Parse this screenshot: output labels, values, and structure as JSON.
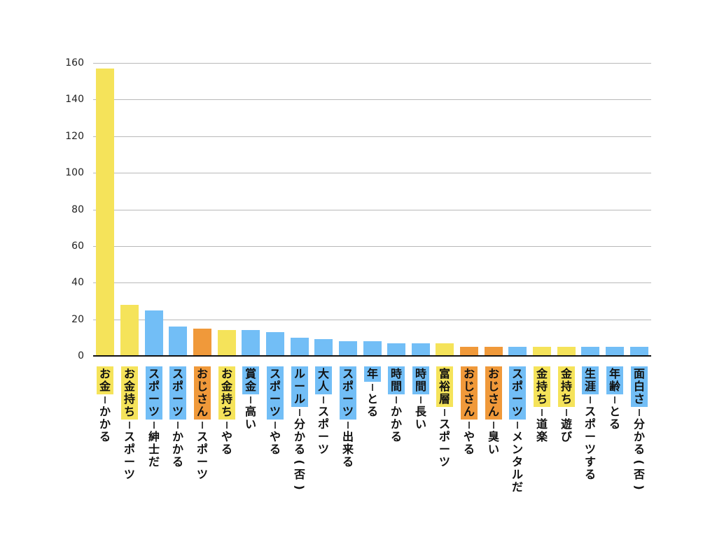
{
  "chart_data": {
    "type": "bar",
    "title": "",
    "xlabel": "",
    "ylabel": "",
    "ylim": [
      0,
      160
    ],
    "yticks": [
      0,
      20,
      40,
      60,
      80,
      100,
      120,
      140,
      160
    ],
    "grid": true,
    "legend": null,
    "colors": {
      "yellow": "#F5E35A",
      "blue": "#72BEF6",
      "orange": "#F0993A"
    },
    "categories": [
      "お金－かかる",
      "お金持ち－スポーツ",
      "スポーツ－紳士だ",
      "スポーツ－かかる",
      "おじさん－スポーツ",
      "お金持ち－やる",
      "賞金－高い",
      "スポーツ－やる",
      "ルール－分かる(否)",
      "大人－スポーツ",
      "スポーツ－出来る",
      "年－とる",
      "時間－かかる",
      "時間－長い",
      "富裕層－スポーツ",
      "おじさん－やる",
      "おじさん－臭い",
      "スポーツ－メンタルだ",
      "金持ち－道楽",
      "金持ち－遊び",
      "生涯－スポーツする",
      "年齢－とる",
      "面白さ－分かる(否)"
    ],
    "values": [
      157,
      28,
      25,
      16,
      15,
      14,
      14,
      13,
      10,
      9,
      8,
      8,
      7,
      7,
      7,
      5,
      5,
      5,
      5,
      5,
      5,
      5,
      5
    ],
    "bars": [
      {
        "subject": "お金",
        "predicate": "かかる",
        "value": 157,
        "color": "yellow"
      },
      {
        "subject": "お金持ち",
        "predicate": "スポーツ",
        "value": 28,
        "color": "yellow"
      },
      {
        "subject": "スポーツ",
        "predicate": "紳士だ",
        "value": 25,
        "color": "blue"
      },
      {
        "subject": "スポーツ",
        "predicate": "かかる",
        "value": 16,
        "color": "blue"
      },
      {
        "subject": "おじさん",
        "predicate": "スポーツ",
        "value": 15,
        "color": "orange"
      },
      {
        "subject": "お金持ち",
        "predicate": "やる",
        "value": 14,
        "color": "yellow"
      },
      {
        "subject": "賞金",
        "predicate": "高い",
        "value": 14,
        "color": "blue"
      },
      {
        "subject": "スポーツ",
        "predicate": "やる",
        "value": 13,
        "color": "blue"
      },
      {
        "subject": "ルール",
        "predicate": "分かる(否)",
        "value": 10,
        "color": "blue"
      },
      {
        "subject": "大人",
        "predicate": "スポーツ",
        "value": 9,
        "color": "blue"
      },
      {
        "subject": "スポーツ",
        "predicate": "出来る",
        "value": 8,
        "color": "blue"
      },
      {
        "subject": "年",
        "predicate": "とる",
        "value": 8,
        "color": "blue"
      },
      {
        "subject": "時間",
        "predicate": "かかる",
        "value": 7,
        "color": "blue"
      },
      {
        "subject": "時間",
        "predicate": "長い",
        "value": 7,
        "color": "blue"
      },
      {
        "subject": "富裕層",
        "predicate": "スポーツ",
        "value": 7,
        "color": "yellow"
      },
      {
        "subject": "おじさん",
        "predicate": "やる",
        "value": 5,
        "color": "orange"
      },
      {
        "subject": "おじさん",
        "predicate": "臭い",
        "value": 5,
        "color": "orange"
      },
      {
        "subject": "スポーツ",
        "predicate": "メンタルだ",
        "value": 5,
        "color": "blue"
      },
      {
        "subject": "金持ち",
        "predicate": "道楽",
        "value": 5,
        "color": "yellow"
      },
      {
        "subject": "金持ち",
        "predicate": "遊び",
        "value": 5,
        "color": "yellow"
      },
      {
        "subject": "生涯",
        "predicate": "スポーツする",
        "value": 5,
        "color": "blue"
      },
      {
        "subject": "年齢",
        "predicate": "とる",
        "value": 5,
        "color": "blue"
      },
      {
        "subject": "面白さ",
        "predicate": "分かる(否)",
        "value": 5,
        "color": "blue"
      }
    ]
  }
}
